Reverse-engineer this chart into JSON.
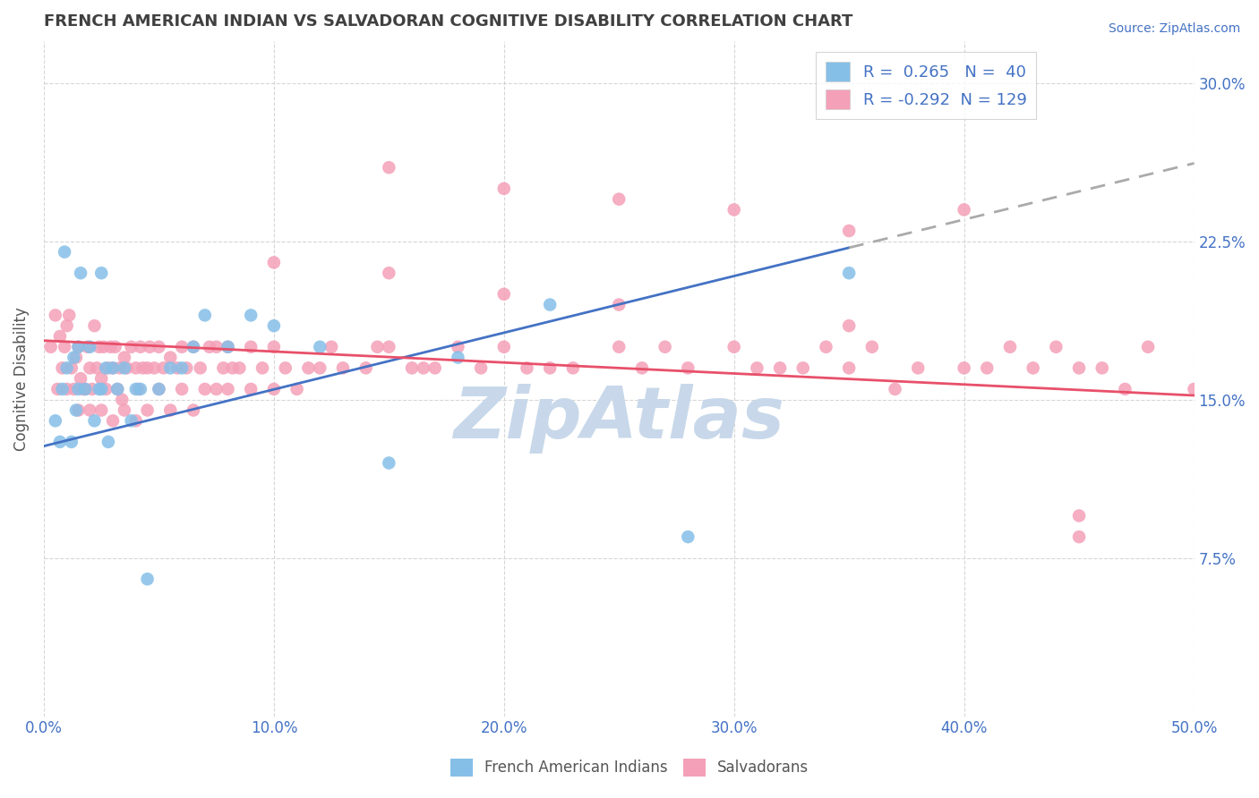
{
  "title": "FRENCH AMERICAN INDIAN VS SALVADORAN COGNITIVE DISABILITY CORRELATION CHART",
  "source": "Source: ZipAtlas.com",
  "ylabel": "Cognitive Disability",
  "xlim": [
    0.0,
    0.5
  ],
  "ylim": [
    0.0,
    0.32
  ],
  "yticks": [
    0.075,
    0.15,
    0.225,
    0.3
  ],
  "ytick_labels": [
    "7.5%",
    "15.0%",
    "22.5%",
    "30.0%"
  ],
  "xticks": [
    0.0,
    0.1,
    0.2,
    0.3,
    0.4,
    0.5
  ],
  "xtick_labels": [
    "0.0%",
    "10.0%",
    "20.0%",
    "30.0%",
    "40.0%",
    "50.0%"
  ],
  "blue_R": 0.265,
  "blue_N": 40,
  "pink_R": -0.292,
  "pink_N": 129,
  "blue_scatter_color": "#85bfe8",
  "pink_scatter_color": "#f4a0b8",
  "background_color": "#ffffff",
  "grid_color": "#cccccc",
  "title_color": "#404040",
  "axis_label_color": "#555555",
  "tick_label_color": "#4472c4",
  "legend_R_color": "#4472c4",
  "blue_line_color": "#4472c4",
  "pink_line_color": "#e8506a",
  "blue_line_dashed_color": "#aaaaaa",
  "watermark_color": "#c8d8ea",
  "blue_line_start_x": 0.0,
  "blue_line_start_y": 0.128,
  "blue_line_solid_end_x": 0.35,
  "blue_line_solid_end_y": 0.222,
  "blue_line_dashed_end_x": 0.5,
  "blue_line_dashed_end_y": 0.262,
  "pink_line_start_x": 0.0,
  "pink_line_start_y": 0.178,
  "pink_line_end_x": 0.5,
  "pink_line_end_y": 0.152,
  "blue_x": [
    0.005,
    0.007,
    0.008,
    0.009,
    0.01,
    0.012,
    0.013,
    0.014,
    0.015,
    0.015,
    0.016,
    0.018,
    0.02,
    0.022,
    0.024,
    0.025,
    0.025,
    0.027,
    0.028,
    0.03,
    0.032,
    0.035,
    0.038,
    0.04,
    0.042,
    0.045,
    0.05,
    0.055,
    0.06,
    0.065,
    0.07,
    0.08,
    0.09,
    0.1,
    0.12,
    0.15,
    0.18,
    0.22,
    0.28,
    0.35
  ],
  "blue_y": [
    0.14,
    0.13,
    0.155,
    0.22,
    0.165,
    0.13,
    0.17,
    0.145,
    0.175,
    0.155,
    0.21,
    0.155,
    0.175,
    0.14,
    0.155,
    0.21,
    0.155,
    0.165,
    0.13,
    0.165,
    0.155,
    0.165,
    0.14,
    0.155,
    0.155,
    0.065,
    0.155,
    0.165,
    0.165,
    0.175,
    0.19,
    0.175,
    0.19,
    0.185,
    0.175,
    0.12,
    0.17,
    0.195,
    0.085,
    0.21
  ],
  "pink_x": [
    0.003,
    0.005,
    0.006,
    0.007,
    0.008,
    0.009,
    0.01,
    0.01,
    0.011,
    0.012,
    0.013,
    0.014,
    0.015,
    0.015,
    0.016,
    0.017,
    0.018,
    0.019,
    0.02,
    0.02,
    0.021,
    0.022,
    0.023,
    0.024,
    0.025,
    0.025,
    0.026,
    0.027,
    0.028,
    0.029,
    0.03,
    0.03,
    0.031,
    0.032,
    0.033,
    0.034,
    0.035,
    0.035,
    0.036,
    0.038,
    0.04,
    0.04,
    0.041,
    0.042,
    0.043,
    0.045,
    0.045,
    0.046,
    0.048,
    0.05,
    0.05,
    0.052,
    0.055,
    0.055,
    0.058,
    0.06,
    0.06,
    0.062,
    0.065,
    0.065,
    0.068,
    0.07,
    0.072,
    0.075,
    0.075,
    0.078,
    0.08,
    0.08,
    0.082,
    0.085,
    0.09,
    0.09,
    0.095,
    0.1,
    0.1,
    0.105,
    0.11,
    0.115,
    0.12,
    0.125,
    0.13,
    0.14,
    0.145,
    0.15,
    0.16,
    0.165,
    0.17,
    0.18,
    0.19,
    0.2,
    0.21,
    0.22,
    0.23,
    0.25,
    0.26,
    0.27,
    0.28,
    0.3,
    0.31,
    0.32,
    0.33,
    0.34,
    0.35,
    0.36,
    0.37,
    0.38,
    0.4,
    0.41,
    0.42,
    0.43,
    0.44,
    0.45,
    0.46,
    0.47,
    0.48,
    0.5,
    0.15,
    0.2,
    0.25,
    0.3,
    0.35,
    0.4,
    0.45,
    0.1,
    0.15,
    0.2,
    0.25,
    0.35,
    0.45
  ],
  "pink_y": [
    0.175,
    0.19,
    0.155,
    0.18,
    0.165,
    0.175,
    0.185,
    0.155,
    0.19,
    0.165,
    0.155,
    0.17,
    0.145,
    0.175,
    0.16,
    0.155,
    0.155,
    0.175,
    0.145,
    0.165,
    0.155,
    0.185,
    0.165,
    0.175,
    0.145,
    0.16,
    0.175,
    0.155,
    0.165,
    0.175,
    0.14,
    0.165,
    0.175,
    0.155,
    0.165,
    0.15,
    0.145,
    0.17,
    0.165,
    0.175,
    0.14,
    0.165,
    0.155,
    0.175,
    0.165,
    0.145,
    0.165,
    0.175,
    0.165,
    0.155,
    0.175,
    0.165,
    0.145,
    0.17,
    0.165,
    0.155,
    0.175,
    0.165,
    0.145,
    0.175,
    0.165,
    0.155,
    0.175,
    0.155,
    0.175,
    0.165,
    0.155,
    0.175,
    0.165,
    0.165,
    0.155,
    0.175,
    0.165,
    0.155,
    0.175,
    0.165,
    0.155,
    0.165,
    0.165,
    0.175,
    0.165,
    0.165,
    0.175,
    0.175,
    0.165,
    0.165,
    0.165,
    0.175,
    0.165,
    0.175,
    0.165,
    0.165,
    0.165,
    0.175,
    0.165,
    0.175,
    0.165,
    0.175,
    0.165,
    0.165,
    0.165,
    0.175,
    0.165,
    0.175,
    0.155,
    0.165,
    0.165,
    0.165,
    0.175,
    0.165,
    0.175,
    0.165,
    0.165,
    0.155,
    0.175,
    0.155,
    0.26,
    0.25,
    0.245,
    0.24,
    0.23,
    0.24,
    0.085,
    0.215,
    0.21,
    0.2,
    0.195,
    0.185,
    0.095
  ]
}
